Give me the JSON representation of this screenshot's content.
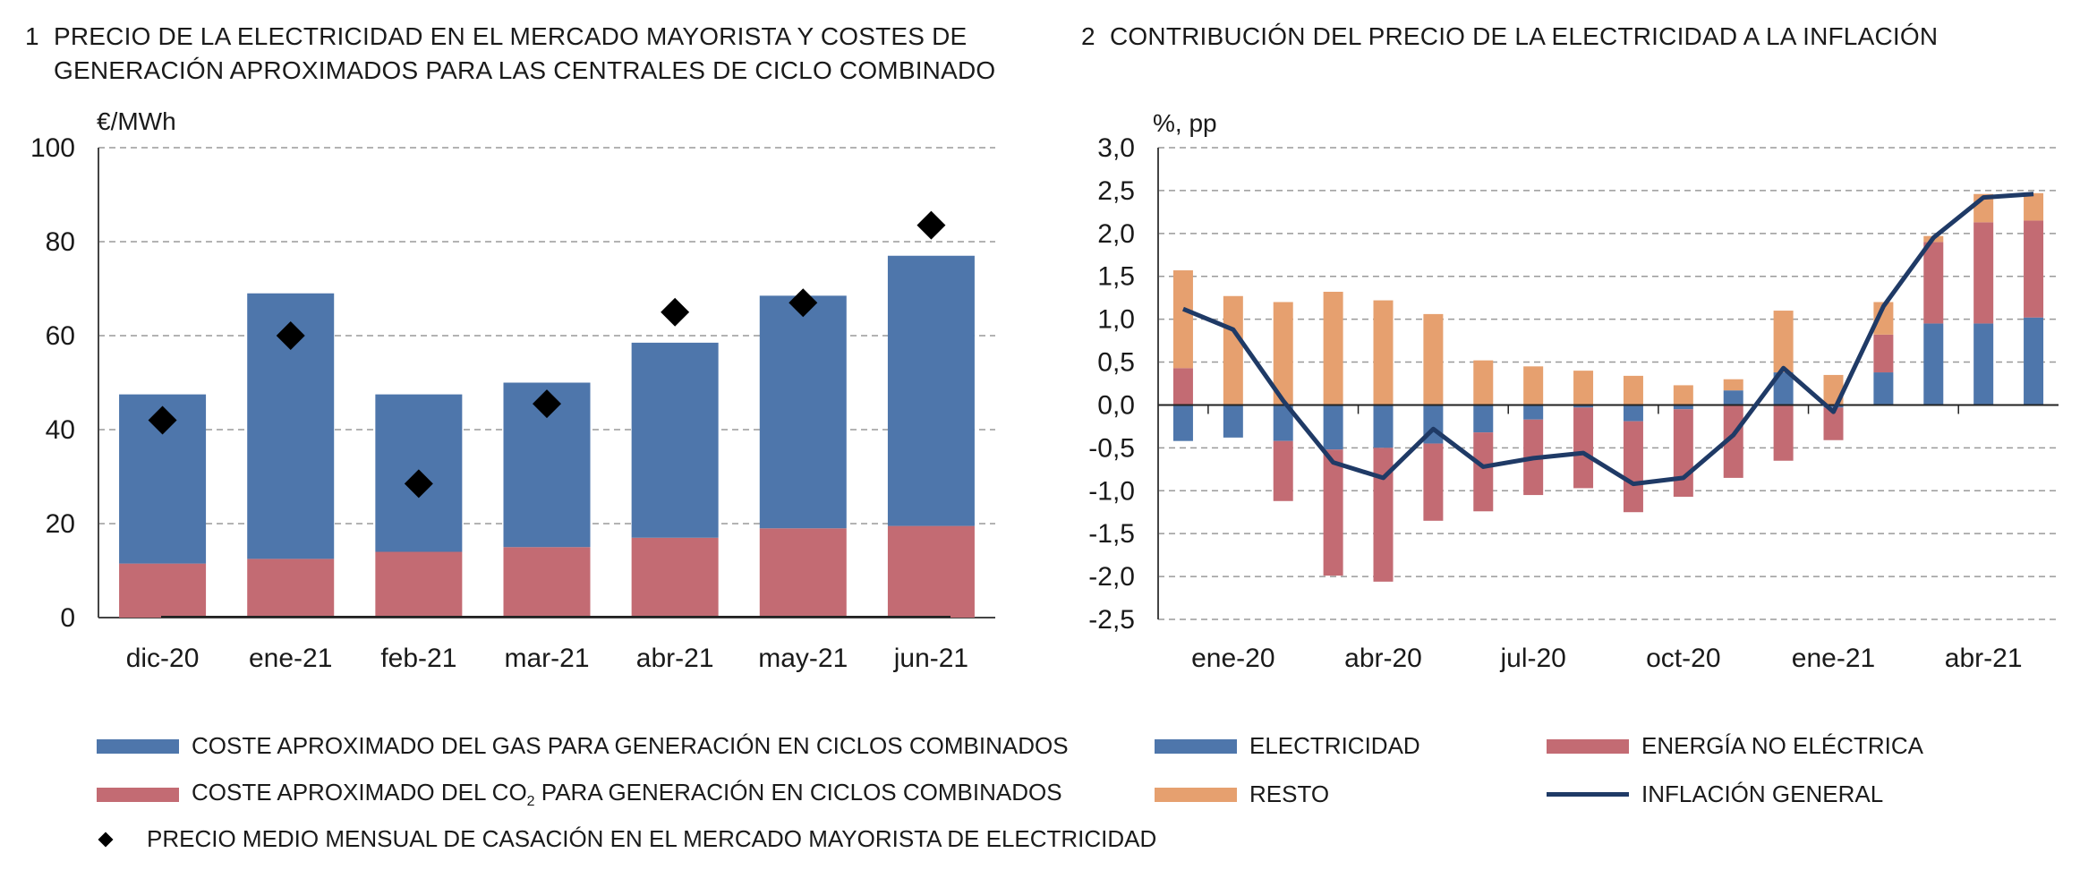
{
  "left_chart": {
    "number": "1",
    "title_line1": "PRECIO DE LA ELECTRICIDAD EN EL MERCADO MAYORISTA Y COSTES DE",
    "title_line2": "GENERACIÓN APROXIMADOS PARA LAS CENTRALES DE CICLO COMBINADO",
    "unit": "€/MWh",
    "legend": {
      "gas": "COSTE APROXIMADO DEL GAS PARA GENERACIÓN EN CICLOS COMBINADOS",
      "co2_pre": "COSTE APROXIMADO DEL CO",
      "co2_sub": "2",
      "co2_post": " PARA GENERACIÓN EN CICLOS COMBINADOS",
      "price": "PRECIO MEDIO MENSUAL DE CASACIÓN EN EL MERCADO MAYORISTA DE ELECTRICIDAD"
    }
  },
  "right_chart": {
    "number": "2",
    "title": "CONTRIBUCIÓN DEL PRECIO DE LA ELECTRICIDAD A LA INFLACIÓN",
    "unit": "%, pp",
    "legend": {
      "electricidad": "ELECTRICIDAD",
      "energia": "ENERGÍA NO ELÉCTRICA",
      "resto": "RESTO",
      "inflacion": "INFLACIÓN GENERAL"
    }
  },
  "colors": {
    "blue": "#4e76ab",
    "red": "#c36b73",
    "orange": "#e6a06f",
    "navy": "#1f3a66",
    "diamond": "#000000"
  },
  "chart_data": [
    {
      "type": "bar",
      "stacked": true,
      "categories": [
        "dic-20",
        "ene-21",
        "feb-21",
        "mar-21",
        "abr-21",
        "may-21",
        "jun-21"
      ],
      "series": [
        {
          "name": "COSTE APROXIMADO DEL CO2 PARA GENERACIÓN EN CICLOS COMBINADOS",
          "values": [
            11.5,
            12.5,
            14,
            15,
            17,
            19,
            19.5
          ]
        },
        {
          "name": "COSTE APROXIMADO DEL GAS PARA GENERACIÓN EN CICLOS COMBINADOS",
          "values": [
            36,
            56.5,
            33.5,
            35,
            41.5,
            49.5,
            57.5
          ]
        }
      ],
      "markers": {
        "name": "PRECIO MEDIO MENSUAL DE CASACIÓN EN EL MERCADO MAYORISTA DE ELECTRICIDAD",
        "values": [
          42,
          60,
          28.5,
          45.5,
          65,
          67,
          83.5
        ]
      },
      "ylabel": "€/MWh",
      "ylim": [
        0,
        100
      ],
      "yticks": [
        0,
        20,
        40,
        60,
        80,
        100
      ],
      "grid": true
    },
    {
      "type": "bar",
      "stacked": true,
      "x": [
        "dic-19",
        "ene-20",
        "feb-20",
        "mar-20",
        "abr-20",
        "may-20",
        "jun-20",
        "jul-20",
        "ago-20",
        "sep-20",
        "oct-20",
        "nov-20",
        "dic-20",
        "ene-21",
        "feb-21",
        "mar-21",
        "abr-21",
        "may-21"
      ],
      "xticklabels": [
        "ene-20",
        "abr-20",
        "jul-20",
        "oct-20",
        "ene-21",
        "abr-21"
      ],
      "xtick_positions": [
        "ene-20",
        "abr-20",
        "jul-20",
        "oct-20",
        "ene-21",
        "abr-21"
      ],
      "series": [
        {
          "name": "ELECTRICIDAD",
          "values": [
            -0.42,
            -0.38,
            -0.42,
            -0.52,
            -0.5,
            -0.45,
            -0.32,
            -0.17,
            -0.03,
            -0.19,
            -0.05,
            0.17,
            0.38,
            -0.03,
            0.38,
            0.95,
            0.95,
            1.02
          ]
        },
        {
          "name": "ENERGÍA NO ELÉCTRICA",
          "values": [
            0.43,
            0.0,
            -0.7,
            -1.47,
            -1.56,
            -0.9,
            -0.92,
            -0.88,
            -0.94,
            -1.06,
            -1.02,
            -0.85,
            -0.65,
            -0.38,
            0.44,
            0.95,
            1.18,
            1.13
          ]
        },
        {
          "name": "RESTO",
          "values": [
            1.14,
            1.27,
            1.2,
            1.32,
            1.22,
            1.06,
            0.52,
            0.45,
            0.4,
            0.34,
            0.23,
            0.13,
            0.72,
            0.35,
            0.38,
            0.07,
            0.33,
            0.32
          ]
        }
      ],
      "line": {
        "name": "INFLACIÓN GENERAL",
        "values": [
          1.12,
          0.88,
          0.05,
          -0.67,
          -0.85,
          -0.28,
          -0.72,
          -0.62,
          -0.56,
          -0.92,
          -0.85,
          -0.35,
          0.43,
          -0.08,
          1.15,
          1.95,
          2.42,
          2.46
        ]
      },
      "ylabel": "%, pp",
      "ylim": [
        -2.5,
        3.0
      ],
      "yticks": [
        "3,0",
        "2,5",
        "2,0",
        "1,5",
        "1,0",
        "0,5",
        "0,0",
        "-0,5",
        "-1,0",
        "-1,5",
        "-2,0",
        "-2,5"
      ],
      "grid": true
    }
  ]
}
